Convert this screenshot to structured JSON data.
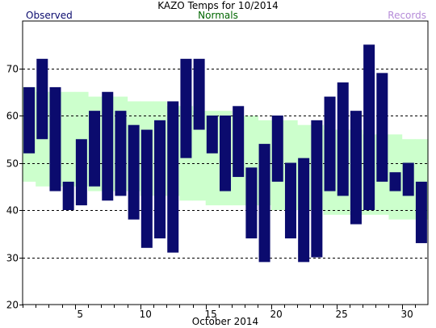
{
  "header": {
    "title": "KAZO Temps for  10/2014",
    "observed_label": "Observed",
    "normals_label": "Normals",
    "records_label": "Records"
  },
  "colors": {
    "observed": "#0b0b6e",
    "normals": "#ccffcc",
    "normals_text": "#006600",
    "records_text": "#b58bd8",
    "observed_text": "#0b0b6e"
  },
  "chart_data": {
    "type": "bar",
    "title": "KAZO Temps for  10/2014",
    "xlabel": "October 2014",
    "ylabel": "",
    "ylim": [
      20,
      80
    ],
    "yticks": [
      20,
      30,
      40,
      50,
      60,
      70
    ],
    "xticks": [
      5,
      10,
      15,
      20,
      25,
      30
    ],
    "xlim": [
      0.5,
      31.5
    ],
    "grid": "horizontal dashed",
    "legend": "top",
    "days": [
      1,
      2,
      3,
      4,
      5,
      6,
      7,
      8,
      9,
      10,
      11,
      12,
      13,
      14,
      15,
      16,
      17,
      18,
      19,
      20,
      21,
      22,
      23,
      24,
      25,
      26,
      27,
      28,
      29,
      30,
      31
    ],
    "series": [
      {
        "name": "Normals",
        "high": [
          66,
          65,
          65,
          65,
          65,
          64,
          64,
          64,
          63,
          63,
          63,
          62,
          62,
          61,
          61,
          61,
          60,
          60,
          59,
          59,
          59,
          58,
          58,
          57,
          57,
          57,
          56,
          56,
          56,
          55,
          55
        ],
        "low": [
          46,
          45,
          45,
          45,
          45,
          44,
          44,
          44,
          44,
          43,
          43,
          43,
          42,
          42,
          41,
          41,
          41,
          41,
          41,
          40,
          40,
          40,
          40,
          39,
          39,
          39,
          39,
          39,
          38,
          38,
          38
        ]
      },
      {
        "name": "Observed",
        "high": [
          66,
          72,
          66,
          46,
          55,
          61,
          65,
          61,
          58,
          57,
          59,
          63,
          72,
          72,
          60,
          60,
          62,
          49,
          54,
          60,
          50,
          51,
          59,
          64,
          67,
          61,
          75,
          69,
          48,
          50,
          46
        ],
        "low": [
          52,
          55,
          44,
          40,
          41,
          45,
          42,
          43,
          38,
          32,
          34,
          31,
          51,
          57,
          52,
          44,
          47,
          34,
          29,
          46,
          34,
          29,
          30,
          44,
          43,
          37,
          40,
          46,
          44,
          43,
          33
        ]
      }
    ]
  }
}
